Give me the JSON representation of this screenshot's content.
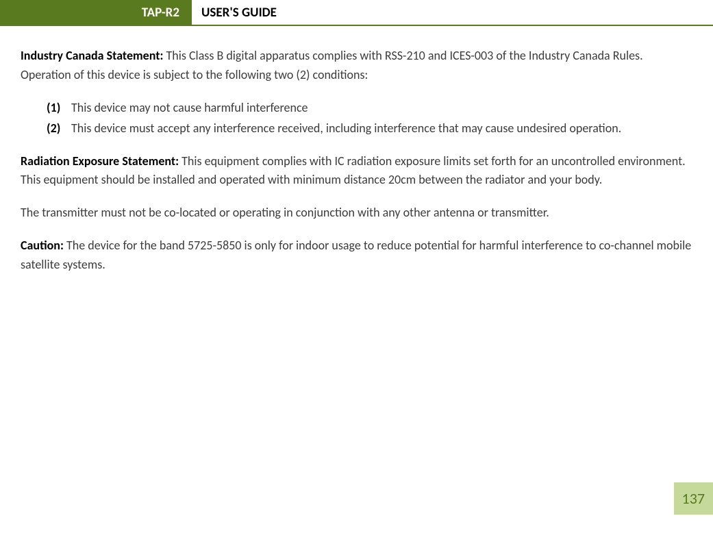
{
  "header": {
    "badge": "TAP-R2",
    "title": "USER'S GUIDE",
    "badge_bg": "#5a7a1f",
    "badge_fg": "#ffffff",
    "underline_color": "#5a7a1f"
  },
  "body": {
    "text_color": "#3c3c3c",
    "bold_color": "#000000",
    "font_size": 18,
    "para1": {
      "lead": "Industry Canada Statement:",
      "text": " This Class B digital apparatus complies with RSS-210 and ICES-003 of the Industry Canada Rules.  Operation of this device is subject to the following two (2) conditions:"
    },
    "list": [
      {
        "marker": "(1)",
        "text": "This device may not cause harmful interference"
      },
      {
        "marker": "(2)",
        "text": "This device must accept any interference received, including interference that may cause undesired operation."
      }
    ],
    "para2": {
      "lead": "Radiation Exposure Statement:",
      "text": " This equipment complies with IC radiation exposure limits set forth for an uncontrolled environment.  This equipment should be installed and operated with minimum distance 20cm between the radiator and your body."
    },
    "para3": {
      "text": "The transmitter must not be co-located or operating in conjunction with any other antenna or transmitter."
    },
    "para4": {
      "lead": "Caution:",
      "text": " The device for the band 5725-5850 is only for indoor usage to reduce potential for harmful interference to co-channel mobile satellite systems."
    }
  },
  "page_number": {
    "value": "137",
    "bg": "#c5d99a",
    "fg": "#5a7a1f"
  }
}
